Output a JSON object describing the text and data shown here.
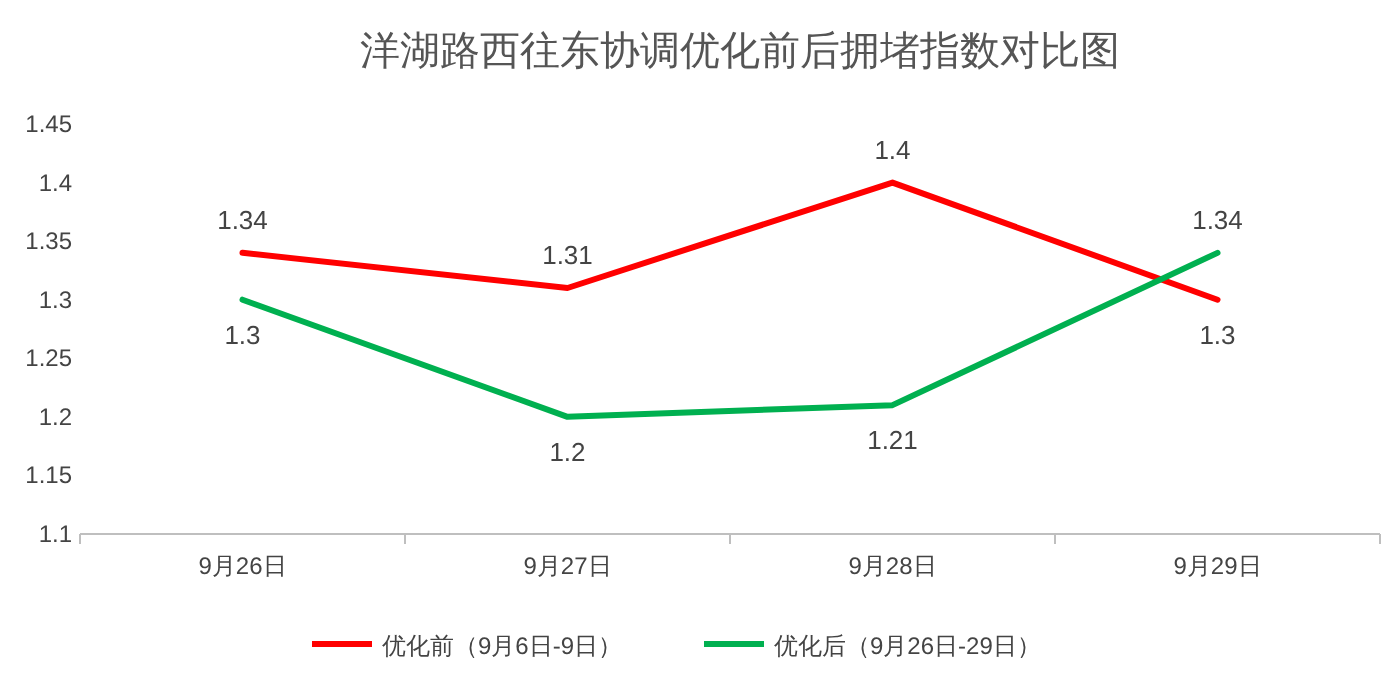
{
  "chart_data": {
    "type": "line",
    "title": "洋湖路西往东协调优化前后拥堵指数对比图",
    "categories": [
      "9月26日",
      "9月27日",
      "9月28日",
      "9月29日"
    ],
    "series": [
      {
        "name": "优化前（9月6日-9日）",
        "color": "#ff0000",
        "values": [
          1.34,
          1.31,
          1.4,
          1.3
        ]
      },
      {
        "name": "优化后（9月26日-29日）",
        "color": "#00b050",
        "values": [
          1.3,
          1.2,
          1.21,
          1.34
        ]
      }
    ],
    "ylim": [
      1.1,
      1.45
    ],
    "yticks": [
      1.1,
      1.15,
      1.2,
      1.25,
      1.3,
      1.35,
      1.4,
      1.45
    ],
    "data_labels": true,
    "legend": "bottom",
    "marker": "none",
    "line_style": "solid"
  }
}
